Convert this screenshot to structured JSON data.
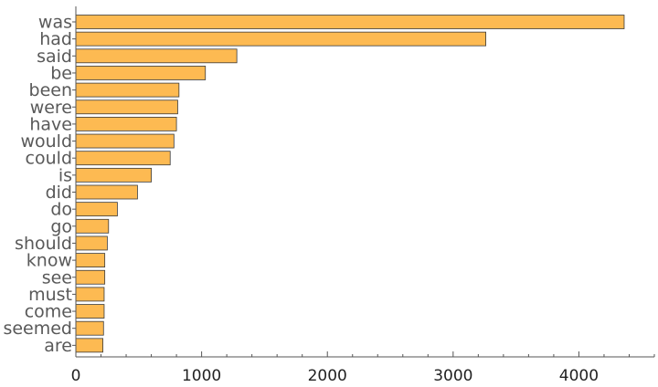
{
  "chart_data": {
    "type": "bar",
    "orientation": "horizontal",
    "title": "",
    "xlabel": "",
    "ylabel": "",
    "categories": [
      "was",
      "had",
      "said",
      "be",
      "been",
      "were",
      "have",
      "would",
      "could",
      "is",
      "did",
      "do",
      "go",
      "should",
      "know",
      "see",
      "must",
      "come",
      "seemed",
      "are"
    ],
    "values": [
      4360,
      3260,
      1280,
      1030,
      820,
      810,
      800,
      780,
      750,
      600,
      490,
      330,
      260,
      250,
      230,
      230,
      225,
      225,
      220,
      215
    ],
    "xlim": [
      0,
      4600
    ],
    "xticks": [
      0,
      1000,
      2000,
      3000,
      4000
    ],
    "x_minor_step": 200,
    "grid": false,
    "legend": "none",
    "colors": {
      "bar_fill": "#FDBA52",
      "bar_stroke": "#3a3a3a",
      "axis": "#555555"
    }
  }
}
